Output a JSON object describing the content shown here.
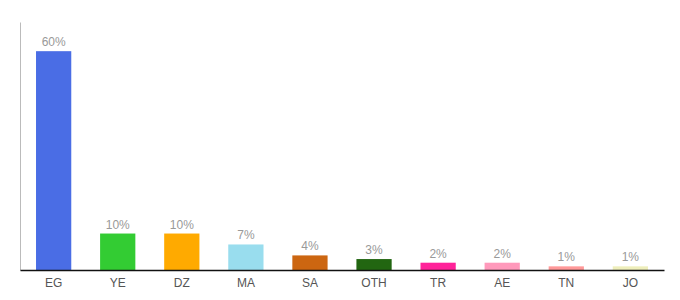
{
  "chart_data": {
    "type": "bar",
    "categories": [
      "EG",
      "YE",
      "DZ",
      "MA",
      "SA",
      "OTH",
      "TR",
      "AE",
      "TN",
      "JO"
    ],
    "values": [
      60,
      10,
      10,
      7,
      4,
      3,
      2,
      2,
      1,
      1
    ],
    "colors": [
      "#4a6de5",
      "#33cc33",
      "#ffaa00",
      "#99ddee",
      "#cc6611",
      "#226611",
      "#ff2299",
      "#ff99bb",
      "#ff9999",
      "#eeeebb"
    ],
    "value_labels": [
      "60%",
      "10%",
      "10%",
      "7%",
      "4%",
      "3%",
      "2%",
      "2%",
      "1%",
      "1%"
    ],
    "data_labels": true,
    "ylim": [
      0,
      68
    ],
    "tick_labels": "x",
    "grid": false
  }
}
